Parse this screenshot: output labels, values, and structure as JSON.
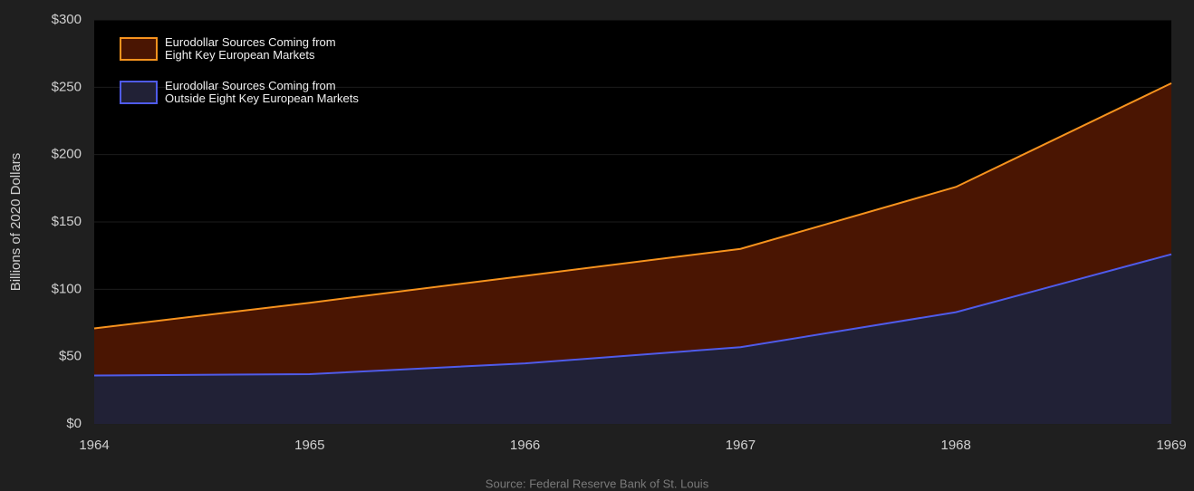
{
  "chart_data": {
    "type": "stacked_area",
    "y_label": "Billions of 2020 Dollars",
    "source": "Source: Federal Reserve Bank of St. Louis",
    "x": [
      1964,
      1965,
      1966,
      1967,
      1968,
      1969
    ],
    "series": [
      {
        "name": "Eurodollar Sources Coming from\nEight Key European Markets",
        "color": "#f7931e",
        "fill": "#4a1502",
        "values": [
          35,
          53,
          65,
          73,
          93,
          127
        ]
      },
      {
        "name": "Eurodollar Sources Coming from\nOutside Eight Key European Markets",
        "color": "#4f5bea",
        "fill": "#212136",
        "values": [
          36,
          37,
          45,
          57,
          83,
          126
        ]
      }
    ],
    "xlim": [
      1964,
      1969
    ],
    "xticks": [
      1964,
      1965,
      1966,
      1967,
      1968,
      1969
    ],
    "ylim": [
      0,
      300
    ],
    "yticks": [
      {
        "value": 0,
        "label": "$0"
      },
      {
        "value": 50,
        "label": "$50"
      },
      {
        "value": 100,
        "label": "$100"
      },
      {
        "value": 150,
        "label": "$150"
      },
      {
        "value": 200,
        "label": "$200"
      },
      {
        "value": 250,
        "label": "$250"
      },
      {
        "value": 300,
        "label": "$300"
      }
    ],
    "grid": true,
    "legend": "top-left"
  }
}
